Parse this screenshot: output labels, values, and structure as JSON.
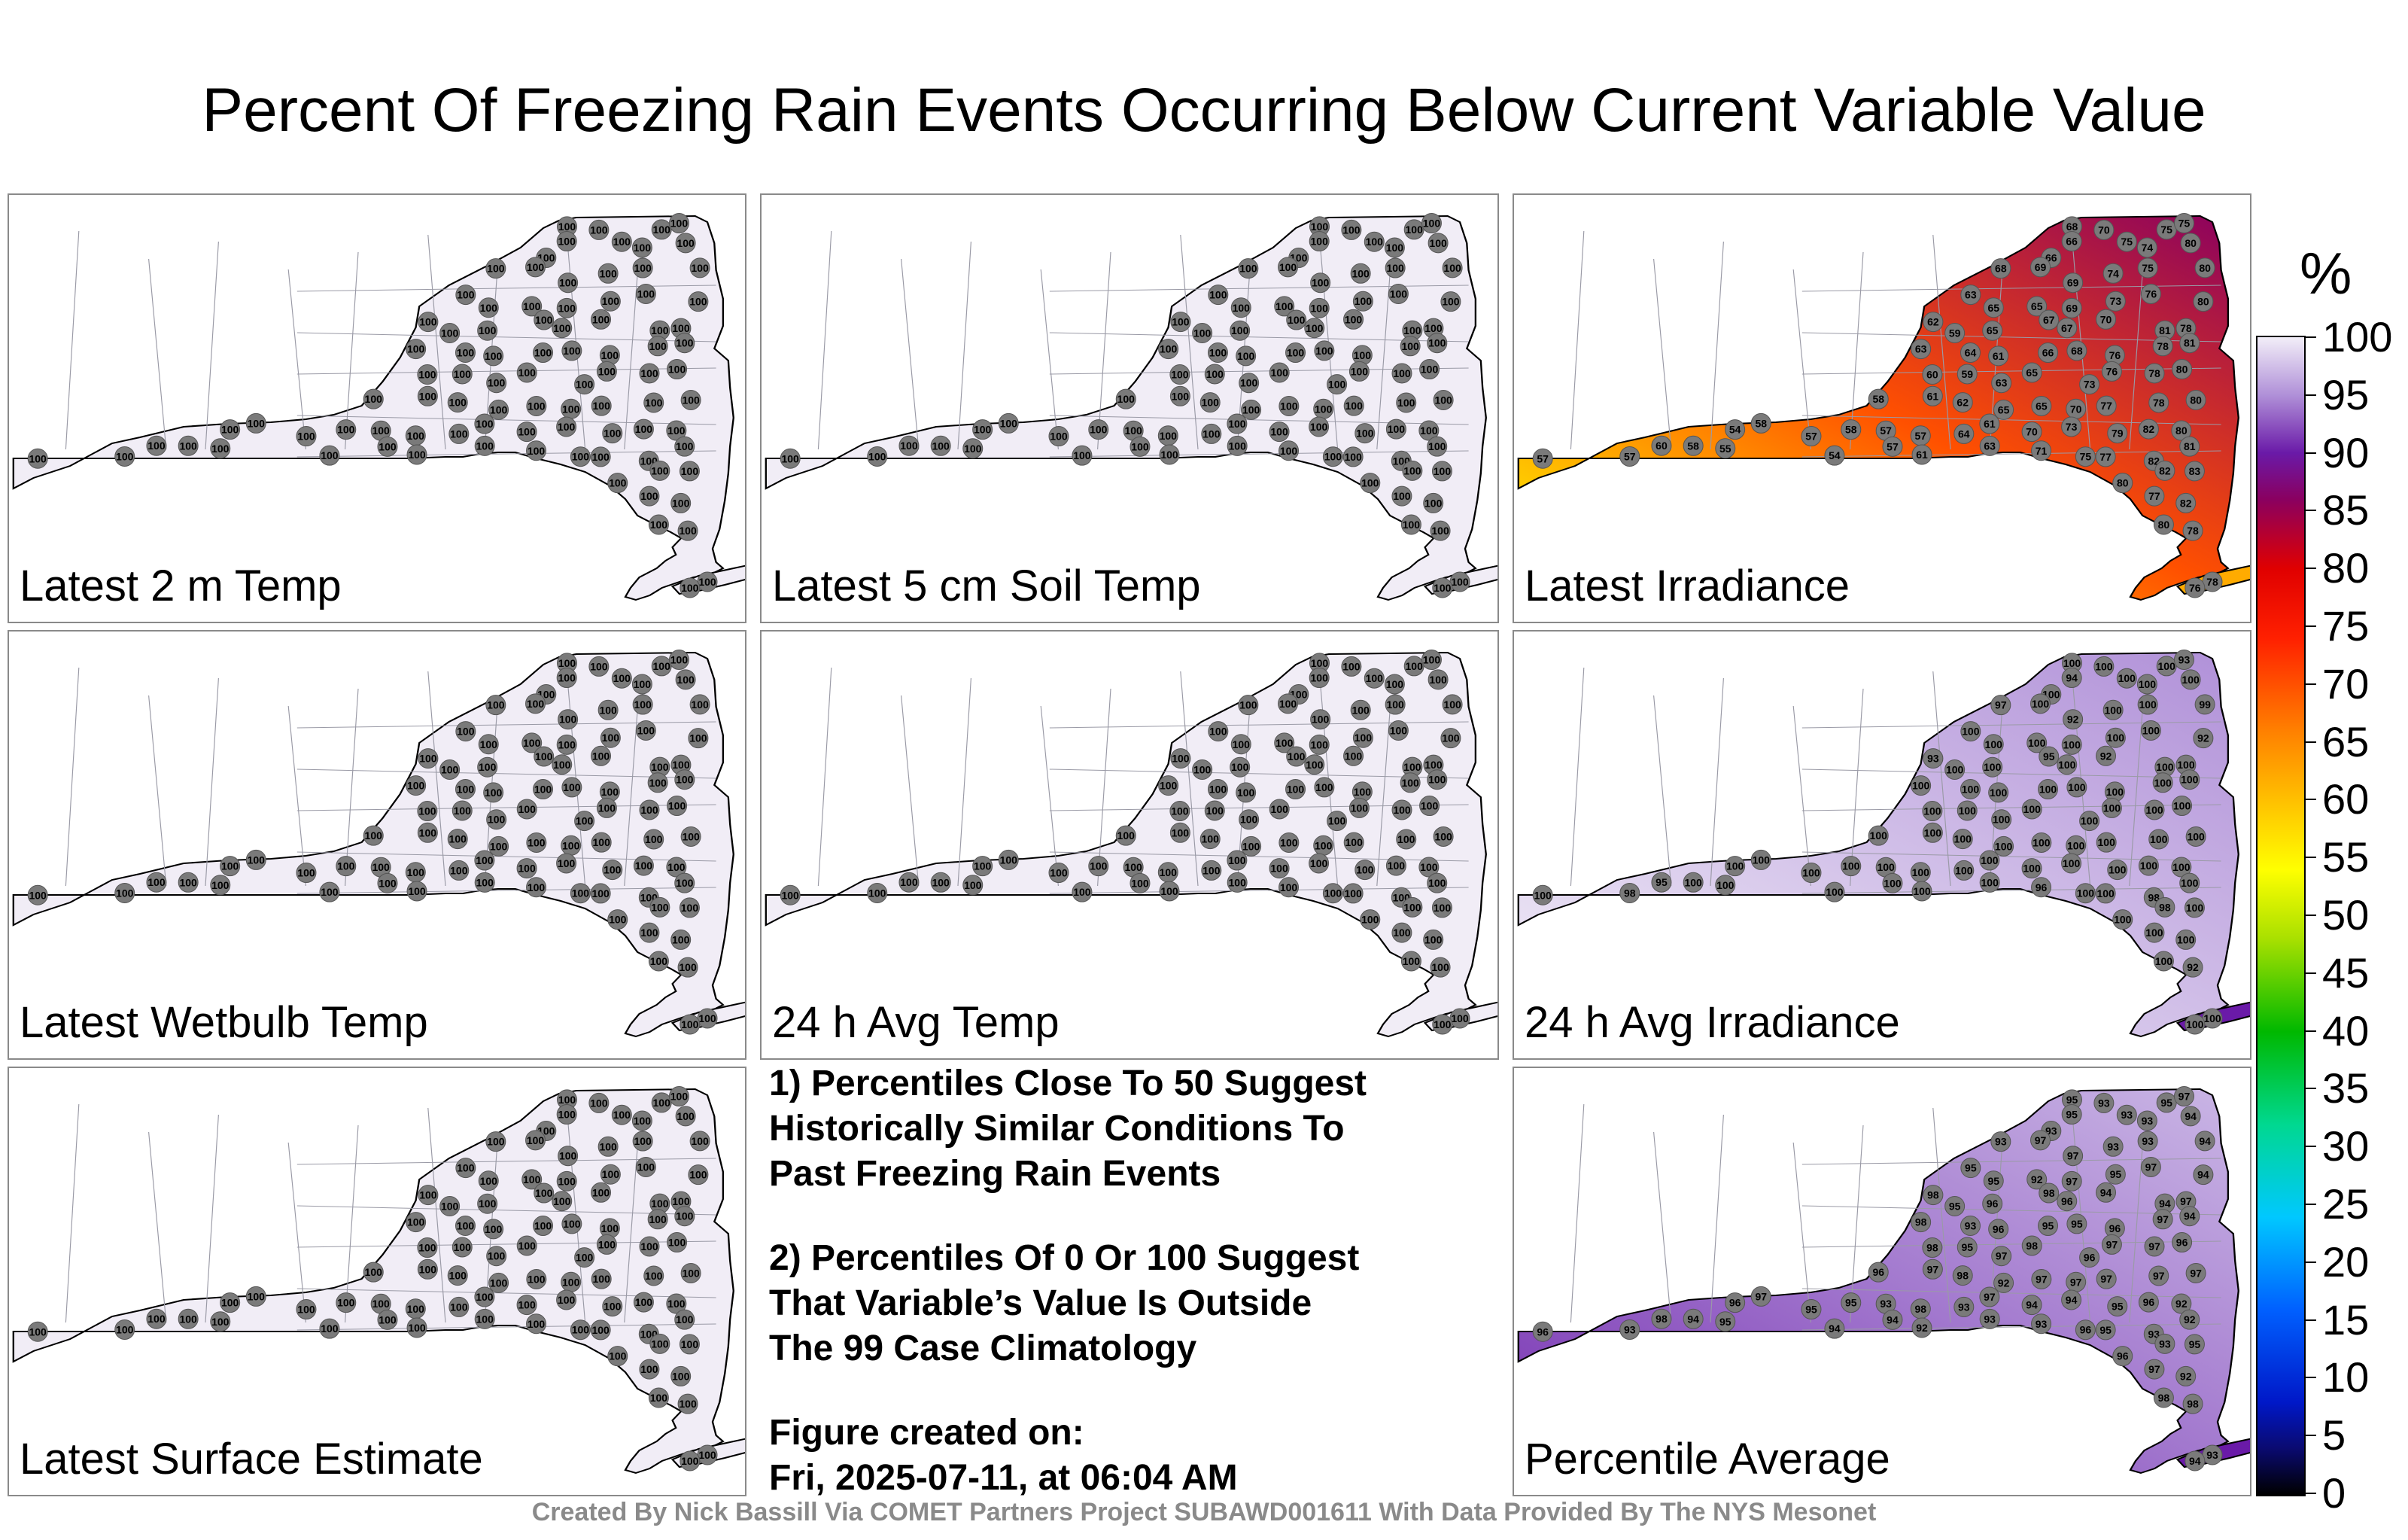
{
  "title": "Percent Of Freezing Rain Events Occurring Below Current Variable Value",
  "panels": [
    {
      "label": "Latest 2 m Temp",
      "mode": "const",
      "value": 100
    },
    {
      "label": "Latest 5 cm Soil Temp",
      "mode": "const",
      "value": 100
    },
    {
      "label": "Latest Irradiance",
      "mode": "irradiance",
      "range": [
        54,
        86
      ]
    },
    {
      "label": "Latest Wetbulb Temp",
      "mode": "const",
      "value": 100
    },
    {
      "label": "24 h Avg Temp",
      "mode": "const",
      "value": 100
    },
    {
      "label": "24 h Avg Irradiance",
      "mode": "avgirr",
      "range": [
        91,
        100
      ]
    },
    {
      "label": "Latest Surface Estimate",
      "mode": "const",
      "value": 100
    },
    {
      "label": "Percentile Average",
      "mode": "pctavg",
      "range": [
        92,
        98
      ]
    }
  ],
  "notes": {
    "note1": [
      "1) Percentiles Close To 50 Suggest",
      "Historically Similar Conditions To",
      "Past Freezing Rain Events"
    ],
    "note2": [
      "2) Percentiles Of 0 Or 100 Suggest",
      "That Variable’s Value Is Outside",
      "The 99 Case Climatology"
    ],
    "created": [
      "Figure created on:",
      "Fri, 2025-07-11, at 06:04 AM"
    ]
  },
  "footer": "Created By Nick Bassill Via COMET Partners Project SUBAWD001611 With Data Provided By The NYS Mesonet",
  "colorbar": {
    "unit": "%",
    "ticks": [
      "100",
      "95",
      "90",
      "85",
      "80",
      "75",
      "70",
      "65",
      "60",
      "55",
      "50",
      "45",
      "40",
      "35",
      "30",
      "25",
      "20",
      "15",
      "10",
      "5",
      "0"
    ],
    "stops": [
      {
        "pct": 0,
        "color": "#000000"
      },
      {
        "pct": 4,
        "color": "#0a0a70"
      },
      {
        "pct": 8,
        "color": "#0018c8"
      },
      {
        "pct": 16,
        "color": "#0060ff"
      },
      {
        "pct": 24,
        "color": "#00c8ff"
      },
      {
        "pct": 32,
        "color": "#00d890"
      },
      {
        "pct": 40,
        "color": "#00b800"
      },
      {
        "pct": 48,
        "color": "#a8e000"
      },
      {
        "pct": 54,
        "color": "#ffff00"
      },
      {
        "pct": 60,
        "color": "#ffc000"
      },
      {
        "pct": 66,
        "color": "#ff8000"
      },
      {
        "pct": 74,
        "color": "#ff2000"
      },
      {
        "pct": 80,
        "color": "#e00000"
      },
      {
        "pct": 86,
        "color": "#8a0060"
      },
      {
        "pct": 90,
        "color": "#6a1aa8"
      },
      {
        "pct": 95,
        "color": "#b090d8"
      },
      {
        "pct": 100,
        "color": "#f2eef8"
      }
    ]
  },
  "marker_color": "#7a7a7a"
}
